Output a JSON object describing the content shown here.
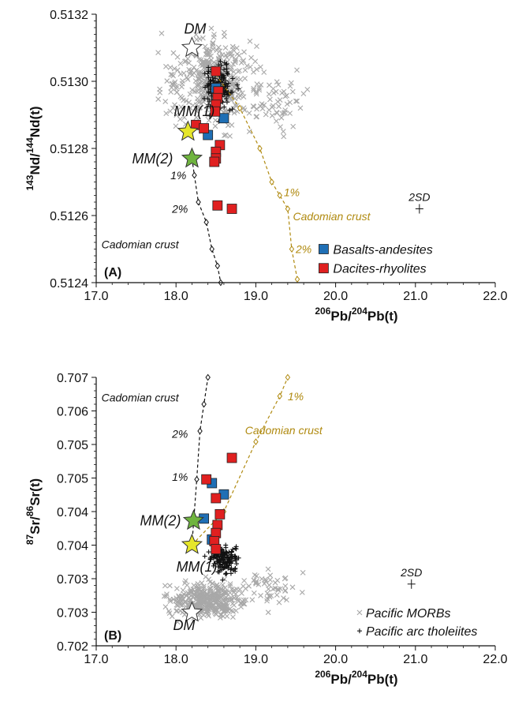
{
  "colors": {
    "morb": "#a8a8a8",
    "arc": "#111111",
    "basalt": "#1f6fb5",
    "dacite": "#e02020",
    "mm1_star": "#e6e62a",
    "mm2_star": "#6fb43f",
    "gold": "#b08a10"
  },
  "chart_data": [
    {
      "type": "scatter",
      "panel_label": "(A)",
      "xlabel": {
        "sup1": "206",
        "base1": "Pb/",
        "sup2": "204",
        "base2": "Pb(t)"
      },
      "ylabel": {
        "sup1": "143",
        "base1": "Nd/",
        "sup2": "144",
        "base2": "Nd(t)"
      },
      "xlim": [
        17.0,
        22.0
      ],
      "ylim": [
        0.5124,
        0.5132
      ],
      "x_ticks": [
        "17.0",
        "18.0",
        "19.0",
        "20.0",
        "21.0",
        "22.0"
      ],
      "y_ticks": [
        "0.5124",
        "0.5126",
        "0.5128",
        "0.5130",
        "0.5132"
      ],
      "legend": [
        "Basalts-andesites",
        "Dacites-rhyolites"
      ],
      "legend_position": "bottom-right",
      "series": [
        {
          "name": "Basalts-andesites",
          "marker": "square",
          "points": [
            [
              18.5,
              0.51298
            ],
            [
              18.6,
              0.51289
            ],
            [
              18.4,
              0.51284
            ]
          ]
        },
        {
          "name": "Dacites-rhyolites",
          "marker": "square",
          "points": [
            [
              18.5,
              0.51303
            ],
            [
              18.53,
              0.51297
            ],
            [
              18.52,
              0.51295
            ],
            [
              18.5,
              0.51293
            ],
            [
              18.49,
              0.51291
            ],
            [
              18.25,
              0.51287
            ],
            [
              18.35,
              0.51286
            ],
            [
              18.55,
              0.51281
            ],
            [
              18.5,
              0.51279
            ],
            [
              18.5,
              0.51277
            ],
            [
              18.48,
              0.51276
            ],
            [
              18.52,
              0.51263
            ],
            [
              18.7,
              0.51262
            ]
          ]
        }
      ],
      "end_members": [
        {
          "label": "DM",
          "x": 18.2,
          "y": 0.5131,
          "style": "open-star"
        },
        {
          "label": "MM(1)",
          "x": 18.15,
          "y": 0.51285,
          "style": "yellow-star"
        },
        {
          "label": "MM(2)",
          "x": 18.2,
          "y": 0.51277,
          "style": "green-star"
        }
      ],
      "mixing_curves": [
        {
          "label": "Cadomian crust",
          "color": "black",
          "tick_labels": [
            "1%",
            "2%"
          ],
          "points": [
            [
              18.2,
              0.51277
            ],
            [
              18.23,
              0.51272
            ],
            [
              18.28,
              0.51264
            ],
            [
              18.38,
              0.51258
            ],
            [
              18.45,
              0.5125
            ],
            [
              18.52,
              0.51245
            ],
            [
              18.56,
              0.5124
            ]
          ]
        },
        {
          "label": "Cadomian crust",
          "color": "gold",
          "tick_labels": [
            "1%",
            "2%"
          ],
          "points": [
            [
              18.5,
              0.51302
            ],
            [
              18.8,
              0.51292
            ],
            [
              19.05,
              0.5128
            ],
            [
              19.2,
              0.5127
            ],
            [
              19.3,
              0.51266
            ],
            [
              19.4,
              0.51262
            ],
            [
              19.45,
              0.5125
            ],
            [
              19.52,
              0.51241
            ]
          ]
        }
      ],
      "notes": [
        {
          "text": "2SD",
          "x": 21.05,
          "y": 0.51262
        }
      ]
    },
    {
      "type": "scatter",
      "panel_label": "(B)",
      "xlabel": {
        "sup1": "206",
        "base1": "Pb/",
        "sup2": "204",
        "base2": "Pb(t)"
      },
      "ylabel": {
        "sup1": "87",
        "base1": "Sr/",
        "sup2": "86",
        "base2": "Sr(t)"
      },
      "xlim": [
        17.0,
        22.0
      ],
      "ylim": [
        0.702,
        0.707
      ],
      "x_ticks": [
        "17.0",
        "18.0",
        "19.0",
        "20.0",
        "21.0",
        "22.0"
      ],
      "y_ticks": [
        "0.702",
        "0.703",
        "0.703",
        "0.704",
        "0.704",
        "0.705",
        "0.705",
        "0.706",
        "0.707"
      ],
      "y_tick_labels": [
        "0.702",
        "0.703",
        "0.703",
        "0.704",
        "0.704",
        "0.705",
        "0.705",
        "0.706",
        "0.707"
      ],
      "legend": [
        "Pacific MORBs",
        "Pacific arc tholeiites"
      ],
      "legend_position": "bottom-right",
      "series": [
        {
          "name": "Basalts-andesites",
          "marker": "square",
          "points": [
            [
              18.45,
              0.70503
            ],
            [
              18.6,
              0.70482
            ],
            [
              18.35,
              0.70437
            ],
            [
              18.45,
              0.70398
            ]
          ]
        },
        {
          "name": "Dacites-rhyolites",
          "marker": "square",
          "points": [
            [
              18.7,
              0.7055
            ],
            [
              18.38,
              0.7051
            ],
            [
              18.5,
              0.70475
            ],
            [
              18.55,
              0.70445
            ],
            [
              18.52,
              0.70425
            ],
            [
              18.5,
              0.7041
            ],
            [
              18.48,
              0.70395
            ],
            [
              18.5,
              0.7038
            ]
          ]
        }
      ],
      "end_members": [
        {
          "label": "DM",
          "x": 18.2,
          "y": 0.70262,
          "style": "open-star"
        },
        {
          "label": "MM(1)",
          "x": 18.2,
          "y": 0.70388,
          "style": "yellow-star"
        },
        {
          "label": "MM(2)",
          "x": 18.22,
          "y": 0.70433,
          "style": "green-star"
        }
      ],
      "mixing_curves": [
        {
          "label": "Cadomian crust",
          "color": "black",
          "tick_labels": [
            "1%",
            "2%"
          ],
          "points": [
            [
              18.2,
              0.70388
            ],
            [
              18.26,
              0.7051
            ],
            [
              18.3,
              0.706
            ],
            [
              18.35,
              0.7065
            ],
            [
              18.4,
              0.707
            ]
          ]
        },
        {
          "label": "Cadomian crust",
          "color": "gold",
          "tick_labels": [
            "1%"
          ],
          "points": [
            [
              18.2,
              0.70388
            ],
            [
              18.6,
              0.7045
            ],
            [
              19.0,
              0.7058
            ],
            [
              19.3,
              0.70665
            ],
            [
              19.4,
              0.707
            ]
          ]
        }
      ],
      "notes": [
        {
          "text": "2SD",
          "x": 20.95,
          "y": 0.70315
        }
      ]
    }
  ]
}
